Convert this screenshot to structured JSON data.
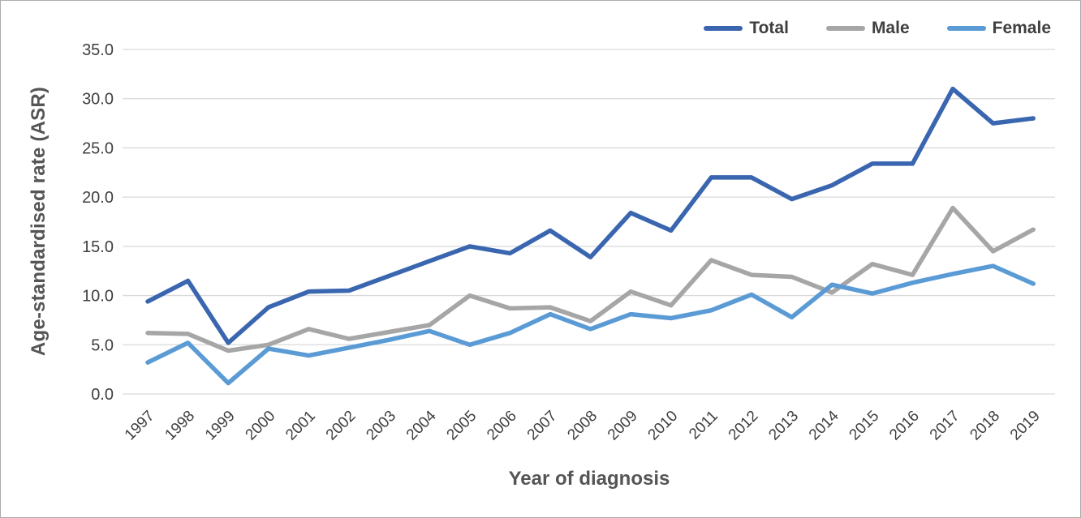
{
  "chart_data": {
    "type": "line",
    "title": "",
    "xlabel": "Year of diagnosis",
    "ylabel": "Age-standardised rate (ASR)",
    "x": [
      "1997",
      "1998",
      "1999",
      "2000",
      "2001",
      "2002",
      "2003",
      "2004",
      "2005",
      "2006",
      "2007",
      "2008",
      "2009",
      "2010",
      "2011",
      "2012",
      "2013",
      "2014",
      "2015",
      "2016",
      "2017",
      "2018",
      "2019"
    ],
    "series": [
      {
        "name": "Total",
        "color": "#3a66b0",
        "values": [
          9.4,
          11.5,
          5.2,
          8.8,
          10.4,
          10.5,
          12.0,
          13.5,
          15.0,
          14.3,
          16.6,
          13.9,
          18.4,
          16.6,
          22.0,
          22.0,
          19.8,
          21.2,
          23.4,
          23.4,
          31.0,
          27.5,
          28.0
        ]
      },
      {
        "name": "Male",
        "color": "#a6a6a6",
        "values": [
          6.2,
          6.1,
          4.4,
          5.0,
          6.6,
          5.6,
          6.3,
          7.0,
          10.0,
          8.7,
          8.8,
          7.4,
          10.4,
          9.0,
          13.6,
          12.1,
          11.9,
          10.3,
          13.2,
          12.1,
          18.9,
          14.5,
          16.7
        ]
      },
      {
        "name": "Female",
        "color": "#5b9bd5",
        "values": [
          3.2,
          5.2,
          1.1,
          4.6,
          3.9,
          4.7,
          5.5,
          6.4,
          5.0,
          6.2,
          8.1,
          6.6,
          8.1,
          7.7,
          8.5,
          10.1,
          7.8,
          11.1,
          10.2,
          11.3,
          12.2,
          13.0,
          11.2
        ]
      }
    ],
    "ylim": [
      0,
      35
    ],
    "ytick_step": 5,
    "ytick_decimals": 1,
    "grid": true,
    "legend_position": "top-right"
  },
  "colors": {
    "grid": "#d9d9d9",
    "tick_text": "#3f3f3f",
    "axis_title_text": "#555555",
    "frame_border": "#ababab",
    "background": "#ffffff"
  }
}
